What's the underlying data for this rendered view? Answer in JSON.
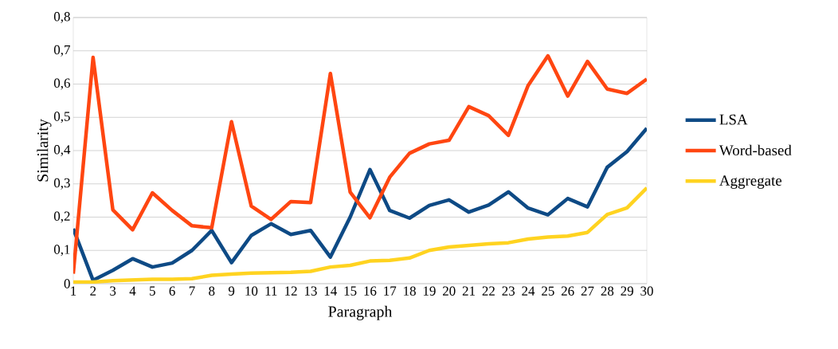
{
  "chart_data": {
    "type": "line",
    "xlabel": "Paragraph",
    "ylabel": "Similarity",
    "categories": [
      "1",
      "2",
      "3",
      "4",
      "5",
      "6",
      "7",
      "8",
      "9",
      "10",
      "11",
      "12",
      "13",
      "14",
      "15",
      "16",
      "17",
      "18",
      "19",
      "20",
      "21",
      "22",
      "23",
      "24",
      "25",
      "26",
      "27",
      "28",
      "29",
      "30"
    ],
    "series": [
      {
        "name": "LSA",
        "color": "#0e4a85",
        "values": [
          0.165,
          0.01,
          0.04,
          0.075,
          0.05,
          0.062,
          0.1,
          0.16,
          0.063,
          0.145,
          0.18,
          0.148,
          0.16,
          0.08,
          0.2,
          0.343,
          0.22,
          0.197,
          0.235,
          0.252,
          0.215,
          0.236,
          0.276,
          0.227,
          0.207,
          0.256,
          0.231,
          0.35,
          0.397,
          0.467
        ]
      },
      {
        "name": "Word-based",
        "color": "#ff4611",
        "values": [
          0.03,
          0.68,
          0.222,
          0.162,
          0.273,
          0.22,
          0.174,
          0.168,
          0.487,
          0.233,
          0.193,
          0.247,
          0.244,
          0.632,
          0.275,
          0.198,
          0.32,
          0.392,
          0.42,
          0.431,
          0.532,
          0.505,
          0.446,
          0.596,
          0.685,
          0.564,
          0.668,
          0.585,
          0.572,
          0.615
        ]
      },
      {
        "name": "Aggregate",
        "color": "#ffd320",
        "values": [
          0.005,
          0.005,
          0.009,
          0.011,
          0.013,
          0.013,
          0.015,
          0.025,
          0.029,
          0.032,
          0.033,
          0.034,
          0.037,
          0.05,
          0.055,
          0.068,
          0.07,
          0.077,
          0.1,
          0.11,
          0.115,
          0.12,
          0.123,
          0.134,
          0.14,
          0.143,
          0.154,
          0.208,
          0.228,
          0.288
        ]
      }
    ],
    "ylim": [
      0,
      0.8
    ],
    "yticks": [
      0,
      {
        "value": 0.1,
        "label": "0,1"
      },
      {
        "value": 0.2,
        "label": "0,2"
      },
      {
        "value": 0.3,
        "label": "0,3"
      },
      {
        "value": 0.4,
        "label": "0,4"
      },
      {
        "value": 0.5,
        "label": "0,5"
      },
      {
        "value": 0.6,
        "label": "0,6"
      },
      {
        "value": 0.7,
        "label": "0,7"
      },
      {
        "value": 0.8,
        "label": "0,8"
      }
    ],
    "grid": "y",
    "legend": "right",
    "marker": "none",
    "line_style": "solid"
  }
}
